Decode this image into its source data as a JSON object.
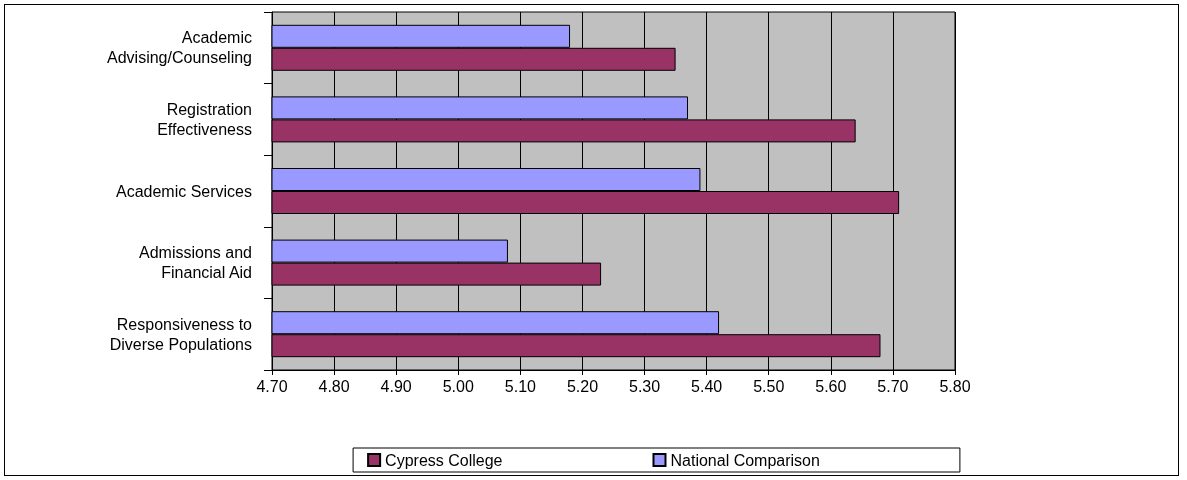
{
  "chart_data": {
    "type": "bar",
    "orientation": "horizontal",
    "categories": [
      "Academic\nAdvising/Counseling",
      "Registration\nEffectiveness",
      "Academic Services",
      "Admissions and\nFinancial Aid",
      "Responsiveness to\nDiverse Populations"
    ],
    "series": [
      {
        "name": "Cypress College",
        "color": "#993366",
        "values": [
          5.35,
          5.64,
          5.71,
          5.23,
          5.68
        ]
      },
      {
        "name": "National Comparison",
        "color": "#9999ff",
        "values": [
          5.18,
          5.37,
          5.39,
          5.08,
          5.42
        ]
      }
    ],
    "xlim": [
      4.7,
      5.8
    ],
    "xticks": [
      {
        "value": 4.7,
        "label": "4.70"
      },
      {
        "value": 4.8,
        "label": "4.80"
      },
      {
        "value": 4.9,
        "label": "4.90"
      },
      {
        "value": 5.0,
        "label": "5.00"
      },
      {
        "value": 5.1,
        "label": "5.10"
      },
      {
        "value": 5.2,
        "label": "5.20"
      },
      {
        "value": 5.3,
        "label": "5.30"
      },
      {
        "value": 5.4,
        "label": "5.40"
      },
      {
        "value": 5.5,
        "label": "5.50"
      },
      {
        "value": 5.6,
        "label": "5.60"
      },
      {
        "value": 5.7,
        "label": "5.70"
      },
      {
        "value": 5.8,
        "label": "5.80"
      }
    ],
    "grid": "x",
    "legend": "bottom"
  }
}
